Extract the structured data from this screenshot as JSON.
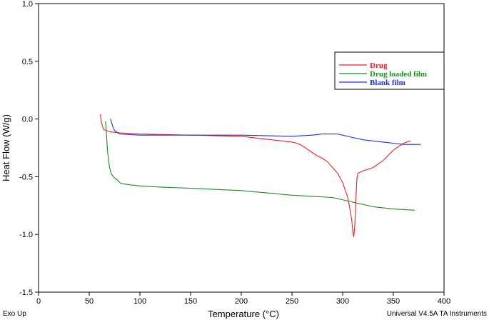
{
  "chart_data": {
    "type": "line",
    "xlabel": "Temperature (°C)",
    "ylabel": "Heat Flow (W/g)",
    "xlim": [
      0,
      400
    ],
    "ylim": [
      -1.5,
      1.0
    ],
    "xticks": [
      0,
      50,
      100,
      150,
      200,
      250,
      300,
      350,
      400
    ],
    "xtick_labels": [
      "0",
      "50",
      "100",
      "150",
      "200",
      "250",
      "300",
      "350",
      "400"
    ],
    "yticks": [
      1.0,
      0.5,
      0.0,
      -0.5,
      -1.0,
      -1.5
    ],
    "ytick_labels": [
      "1.0",
      "0.5",
      "0.0",
      "-0.5",
      "-1.0",
      "-1.5"
    ],
    "grid": false,
    "legend_position": "top-right",
    "footer_left": "Exo Up",
    "footer_right": "Universal V4.5A TA Instruments",
    "series": [
      {
        "name": "Drug",
        "color": "#e8202a",
        "x": [
          61,
          62,
          64,
          70,
          80,
          100,
          150,
          200,
          220,
          240,
          250,
          255,
          260,
          265,
          270,
          275,
          280,
          285,
          290,
          295,
          300,
          305,
          307,
          309,
          310,
          311,
          312,
          313,
          314,
          315,
          320,
          330,
          340,
          350,
          360,
          367
        ],
        "y": [
          0.04,
          -0.03,
          -0.09,
          -0.11,
          -0.12,
          -0.13,
          -0.14,
          -0.15,
          -0.17,
          -0.19,
          -0.2,
          -0.21,
          -0.23,
          -0.26,
          -0.29,
          -0.32,
          -0.34,
          -0.37,
          -0.42,
          -0.47,
          -0.55,
          -0.68,
          -0.77,
          -0.88,
          -0.97,
          -1.02,
          -0.92,
          -0.7,
          -0.52,
          -0.47,
          -0.45,
          -0.42,
          -0.36,
          -0.27,
          -0.21,
          -0.19
        ]
      },
      {
        "name": "Drug loaded film",
        "color": "#218a21",
        "x": [
          66,
          67,
          68,
          70,
          72,
          75,
          78,
          80,
          82,
          90,
          100,
          120,
          150,
          200,
          250,
          270,
          290,
          310,
          330,
          350,
          371
        ],
        "y": [
          -0.02,
          -0.12,
          -0.28,
          -0.42,
          -0.48,
          -0.51,
          -0.53,
          -0.55,
          -0.56,
          -0.57,
          -0.58,
          -0.59,
          -0.6,
          -0.62,
          -0.66,
          -0.67,
          -0.68,
          -0.72,
          -0.76,
          -0.78,
          -0.79
        ]
      },
      {
        "name": "Blank film",
        "color": "#2230d6",
        "x": [
          71,
          73,
          75,
          78,
          80,
          100,
          150,
          200,
          250,
          270,
          280,
          290,
          295,
          300,
          310,
          320,
          330,
          340,
          350,
          360,
          370,
          377
        ],
        "y": [
          0.0,
          -0.06,
          -0.1,
          -0.12,
          -0.13,
          -0.14,
          -0.14,
          -0.14,
          -0.15,
          -0.14,
          -0.13,
          -0.13,
          -0.13,
          -0.14,
          -0.16,
          -0.18,
          -0.19,
          -0.2,
          -0.21,
          -0.22,
          -0.22,
          -0.22
        ]
      }
    ]
  }
}
